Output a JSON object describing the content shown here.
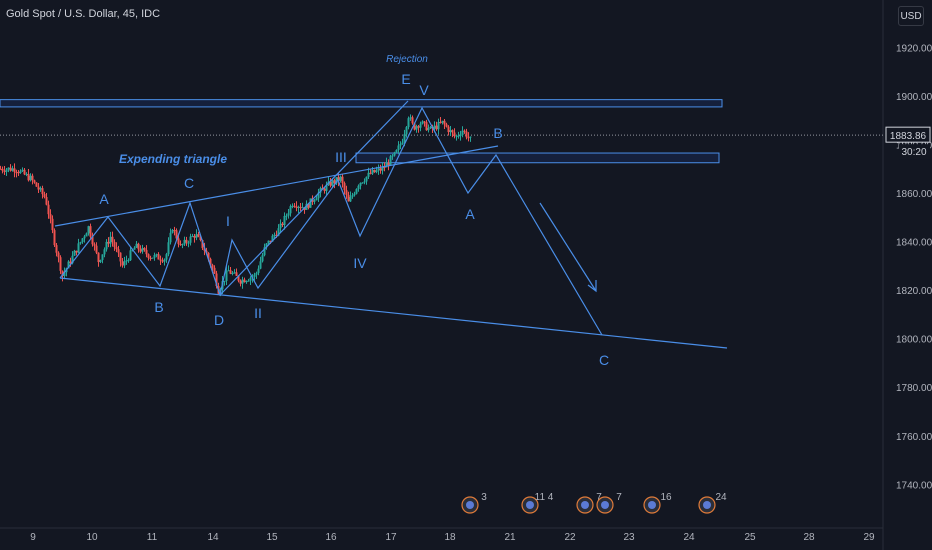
{
  "header": {
    "title": "Gold Spot / U.S. Dollar, 45, IDC"
  },
  "currency_button": "USD",
  "price_label": {
    "value": "1883.86",
    "countdown": "30:20"
  },
  "chart_data": {
    "type": "candlestick",
    "y_ticks": [
      1920,
      1900,
      1880,
      1860,
      1840,
      1820,
      1800,
      1780,
      1760,
      1740
    ],
    "x_ticks": [
      "9",
      "10",
      "11",
      "14",
      "15",
      "16",
      "17",
      "18",
      "21",
      "22",
      "23",
      "24",
      "25",
      "28",
      "29"
    ],
    "last_price": 1883.86,
    "zones": [
      {
        "name": "resistance",
        "from": 1895.5,
        "to": 1898.5
      },
      {
        "name": "support",
        "from": 1872.5,
        "to": 1876.5
      }
    ],
    "annotations": [
      {
        "text": "Expending triangle"
      },
      {
        "text": "Rejection"
      }
    ],
    "wave_labels": [
      "A",
      "C",
      "B",
      "D",
      "E",
      "I",
      "II",
      "III",
      "IV",
      "V",
      "A",
      "B",
      "C"
    ],
    "event_badges": [
      "3",
      "11 4",
      "7",
      "7",
      "16",
      "24"
    ]
  }
}
